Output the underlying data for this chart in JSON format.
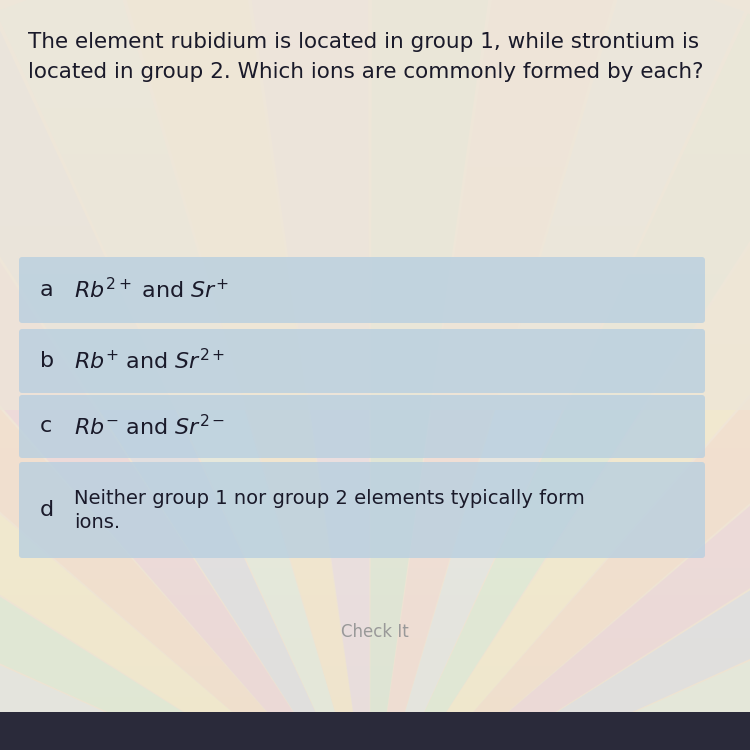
{
  "question_line1": "The element rubidium is located in group 1, while strontium is",
  "question_line2": "located in group 2. Which ions are commonly formed by each?",
  "check_it_label": "Check It",
  "bg_color_top": "#e8e0d0",
  "bg_color_mid": "#f0ece0",
  "option_box_color": "#b8cfe0",
  "question_color": "#1a1a2a",
  "option_label_color": "#1a1a2a",
  "option_text_color": "#1a1a2a",
  "check_it_color": "#999999",
  "option_a_latex": "$\\mathit{Rb}^{2+}$ and $\\mathit{Sr}^{+}$",
  "option_b_latex": "$\\mathit{Rb}^{+}$ and $\\mathit{Sr}^{2+}$",
  "option_c_latex": "$\\mathit{Rb}^{-}$ and $\\mathit{Sr}^{2-}$",
  "option_d_line1": "Neither group 1 nor group 2 elements typically form",
  "option_d_line2": "ions.",
  "labels": [
    "a",
    "b",
    "c",
    "d"
  ],
  "ray_colors": [
    "#e0c8d0",
    "#c8d8e8",
    "#d0e8c8",
    "#e8e0c0",
    "#d8c8e0",
    "#c8e0e0",
    "#e0d0c8",
    "#d0c8e8"
  ],
  "ray_alpha": 0.35
}
